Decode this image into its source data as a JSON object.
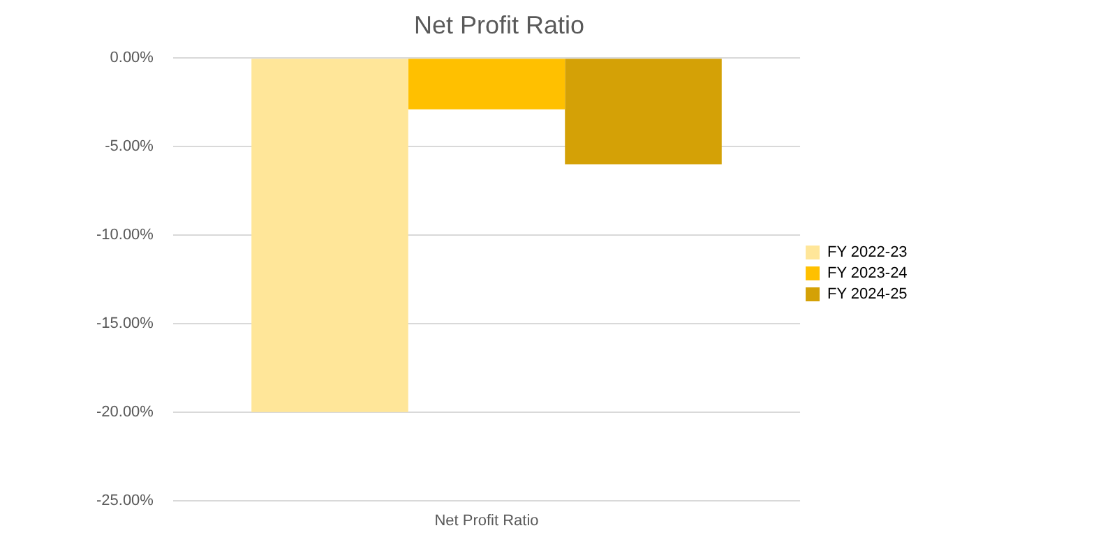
{
  "chart_data": {
    "type": "bar",
    "title": "Net Profit Ratio",
    "categories": [
      "Net Profit Ratio"
    ],
    "series": [
      {
        "name": "FY 2022-23",
        "color": "#ffe699",
        "values": [
          -20.0
        ]
      },
      {
        "name": "FY 2023-24",
        "color": "#ffc000",
        "values": [
          -2.9
        ]
      },
      {
        "name": "FY 2024-25",
        "color": "#d4a106",
        "values": [
          -6.0
        ]
      }
    ],
    "ylim": [
      -25,
      0
    ],
    "yticks": [
      {
        "value": -25,
        "label": "-25.00%"
      },
      {
        "value": -20,
        "label": "-20.00%"
      },
      {
        "value": -15,
        "label": "-15.00%"
      },
      {
        "value": -10,
        "label": "-10.00%"
      },
      {
        "value": -5,
        "label": "-5.00%"
      },
      {
        "value": 0,
        "label": "0.00%"
      }
    ],
    "grid": "y",
    "legend": "right"
  }
}
